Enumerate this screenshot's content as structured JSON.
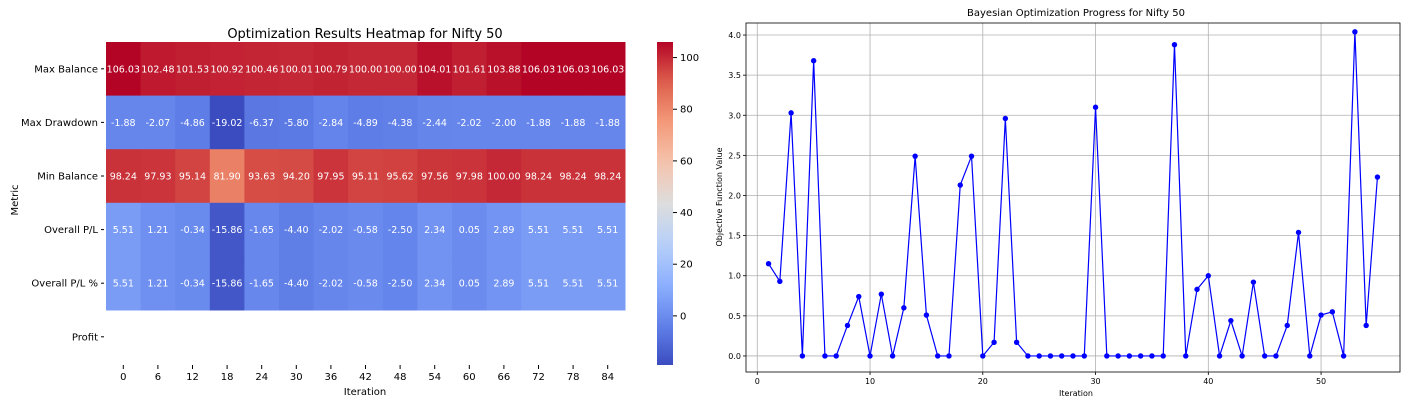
{
  "chart_data": [
    {
      "type": "heatmap",
      "title": "Optimization Results Heatmap for Nifty 50",
      "xlabel": "Iteration",
      "ylabel": "Metric",
      "x": [
        "0",
        "6",
        "12",
        "18",
        "24",
        "30",
        "36",
        "42",
        "48",
        "54",
        "60",
        "66",
        "72",
        "78",
        "84"
      ],
      "y": [
        "Max Balance",
        "Max Drawdown",
        "Min Balance",
        "Overall P/L",
        "Overall P/L %",
        "Profit"
      ],
      "values": [
        [
          "106.03",
          "102.48",
          "101.53",
          "100.92",
          "100.46",
          "100.01",
          "100.79",
          "100.00",
          "100.00",
          "104.01",
          "101.61",
          "103.88",
          "106.03",
          "106.03",
          "106.03"
        ],
        [
          "-1.88",
          "-2.07",
          "-4.86",
          "-19.02",
          "-6.37",
          "-5.80",
          "-2.84",
          "-4.89",
          "-4.38",
          "-2.44",
          "-2.02",
          "-2.00",
          "-1.88",
          "-1.88",
          "-1.88"
        ],
        [
          "98.24",
          "97.93",
          "95.14",
          "81.90",
          "93.63",
          "94.20",
          "97.95",
          "95.11",
          "95.62",
          "97.56",
          "97.98",
          "100.00",
          "98.24",
          "98.24",
          "98.24"
        ],
        [
          "5.51",
          "1.21",
          "-0.34",
          "-15.86",
          "-1.65",
          "-4.40",
          "-2.02",
          "-0.58",
          "-2.50",
          "2.34",
          "0.05",
          "2.89",
          "5.51",
          "5.51",
          "5.51"
        ],
        [
          "5.51",
          "1.21",
          "-0.34",
          "-15.86",
          "-1.65",
          "-4.40",
          "-2.02",
          "-0.58",
          "-2.50",
          "2.34",
          "0.05",
          "2.89",
          "5.51",
          "5.51",
          "5.51"
        ],
        [
          null,
          null,
          null,
          null,
          null,
          null,
          null,
          null,
          null,
          null,
          null,
          null,
          null,
          null,
          null
        ]
      ],
      "colorbar": {
        "ticks": [
          0,
          20,
          40,
          60,
          80,
          100
        ],
        "range": [
          -19.02,
          106.03
        ],
        "colormap": "coolwarm"
      }
    },
    {
      "type": "line",
      "title": "Bayesian Optimization Progress for Nifty 50",
      "xlabel": "Iteration",
      "ylabel": "Objective Function Value",
      "color": "#0000ff",
      "grid": true,
      "xlim": [
        -1,
        57
      ],
      "ylim": [
        -0.2,
        4.15
      ],
      "xticks": [
        0,
        10,
        20,
        30,
        40,
        50
      ],
      "yticks": [
        "0.0",
        "0.5",
        "1.0",
        "1.5",
        "2.0",
        "2.5",
        "3.0",
        "3.5",
        "4.0"
      ],
      "x": [
        1,
        2,
        3,
        4,
        5,
        6,
        7,
        8,
        9,
        10,
        11,
        12,
        13,
        14,
        15,
        16,
        17,
        18,
        19,
        20,
        21,
        22,
        23,
        24,
        25,
        26,
        27,
        28,
        29,
        30,
        31,
        32,
        33,
        34,
        35,
        36,
        37,
        38,
        39,
        40,
        41,
        42,
        43,
        44,
        45,
        46,
        47,
        48,
        49,
        50,
        51,
        52,
        53,
        54,
        55
      ],
      "y": [
        1.15,
        0.93,
        3.03,
        0.0,
        3.68,
        0.0,
        0.0,
        0.38,
        0.74,
        0.0,
        0.77,
        0.0,
        0.6,
        2.49,
        0.51,
        0.0,
        0.0,
        2.13,
        2.49,
        0.0,
        0.17,
        2.96,
        0.17,
        0.0,
        0.0,
        0.0,
        0.0,
        0.0,
        0.0,
        3.1,
        0.0,
        0.0,
        0.0,
        0.0,
        0.0,
        0.0,
        3.88,
        0.0,
        0.83,
        1.0,
        0.0,
        0.44,
        0.0,
        0.92,
        0.0,
        0.0,
        0.38,
        1.54,
        0.0,
        0.51,
        0.55,
        0.0,
        4.04,
        0.38,
        2.23
      ]
    }
  ]
}
